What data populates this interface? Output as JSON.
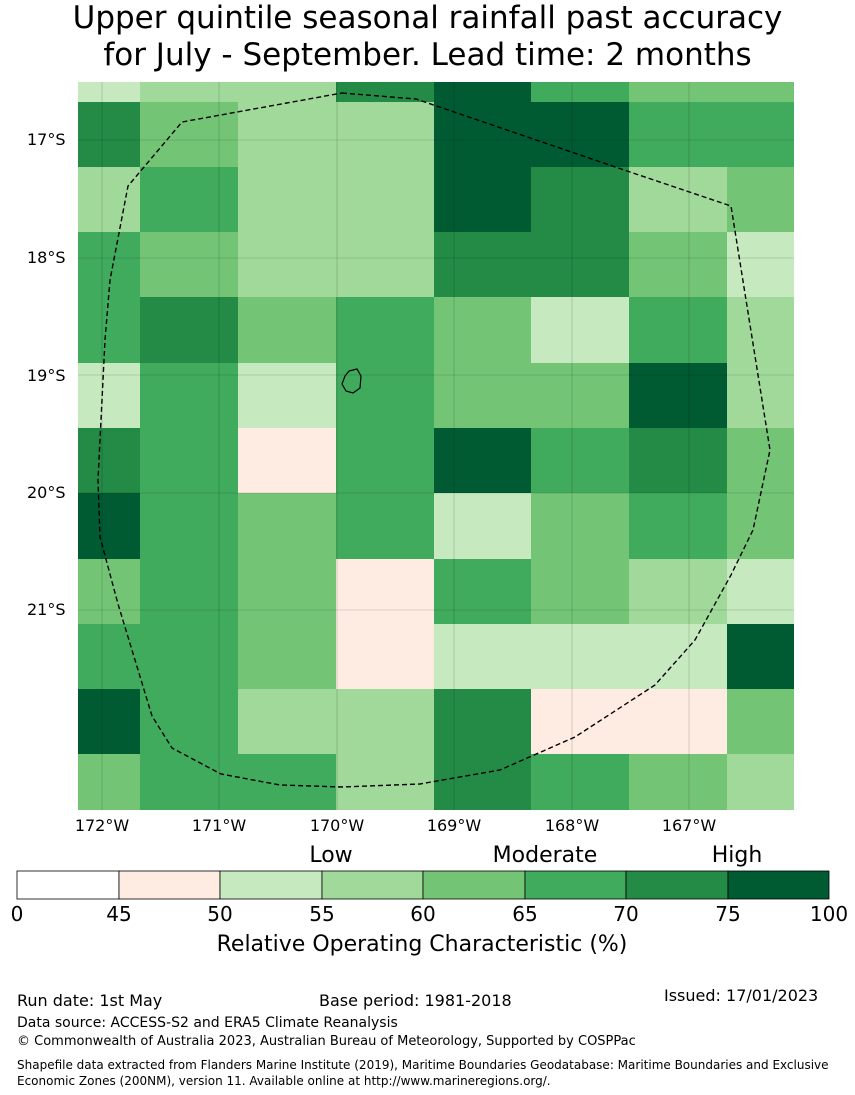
{
  "title": {
    "line1": "Upper quintile seasonal rainfall past accuracy",
    "line2": "for July - September. Lead time: 2 months"
  },
  "map": {
    "lat_labels": [
      "17°S",
      "18°S",
      "19°S",
      "20°S",
      "21°S"
    ],
    "lon_labels": [
      "172°W",
      "171°W",
      "170°W",
      "169°W",
      "168°W",
      "167°W"
    ],
    "boundary": "dashed",
    "grid_values_percent_bins": [
      [
        "50-55",
        "55-60",
        "55-60",
        "70-75",
        "75-100",
        "65-70",
        "60-65",
        "60-65"
      ],
      [
        "70-75",
        "60-65",
        "55-60",
        "55-60",
        "75-100",
        "75-100",
        "65-70",
        "65-70"
      ],
      [
        "55-60",
        "65-70",
        "55-60",
        "55-60",
        "75-100",
        "70-75",
        "55-60",
        "60-65"
      ],
      [
        "65-70",
        "60-65",
        "55-60",
        "55-60",
        "70-75",
        "70-75",
        "60-65",
        "50-55"
      ],
      [
        "65-70",
        "70-75",
        "60-65",
        "65-70",
        "60-65",
        "50-55",
        "65-70",
        "55-60"
      ],
      [
        "50-55",
        "65-70",
        "50-55",
        "65-70",
        "60-65",
        "60-65",
        "75-100",
        "55-60"
      ],
      [
        "70-75",
        "65-70",
        "45-50",
        "65-70",
        "75-100",
        "65-70",
        "70-75",
        "60-65"
      ],
      [
        "75-100",
        "65-70",
        "60-65",
        "65-70",
        "50-55",
        "60-65",
        "65-70",
        "60-65"
      ],
      [
        "60-65",
        "65-70",
        "60-65",
        "45-50",
        "65-70",
        "60-65",
        "55-60",
        "50-55"
      ],
      [
        "65-70",
        "65-70",
        "60-65",
        "45-50",
        "50-55",
        "50-55",
        "50-55",
        "75-100"
      ],
      [
        "75-100",
        "65-70",
        "55-60",
        "55-60",
        "70-75",
        "45-50",
        "45-50",
        "60-65"
      ],
      [
        "60-65",
        "65-70",
        "65-70",
        "55-60",
        "70-75",
        "65-70",
        "60-65",
        "55-60"
      ]
    ]
  },
  "legend": {
    "categories": [
      "Low",
      "Moderate",
      "High"
    ],
    "ticks": [
      "0",
      "45",
      "50",
      "55",
      "60",
      "65",
      "70",
      "75",
      "100"
    ],
    "colors": [
      "#ffffff",
      "#feebe2",
      "#c7e9c0",
      "#a1d99b",
      "#74c476",
      "#41ab5d",
      "#238b45",
      "#005a32"
    ],
    "label": "Relative Operating Characteristic (%)"
  },
  "footer": {
    "run_date": "Run date: 1st May",
    "base_period": "Base period: 1981-2018",
    "issued": "Issued: 17/01/2023",
    "data_source": "Data source: ACCESS-S2 and ERA5 Climate Reanalysis",
    "copyright": "© Commonwealth of Australia 2023, Australian Bureau of Meteorology, Supported by COSPPac",
    "shapefile": "Shapefile data extracted from Flanders Marine Institute (2019), Maritime Boundaries Geodatabase: Maritime Boundaries and Exclusive Economic Zones (200NM), version 11. Available online at http://www.marineregions.org/."
  }
}
